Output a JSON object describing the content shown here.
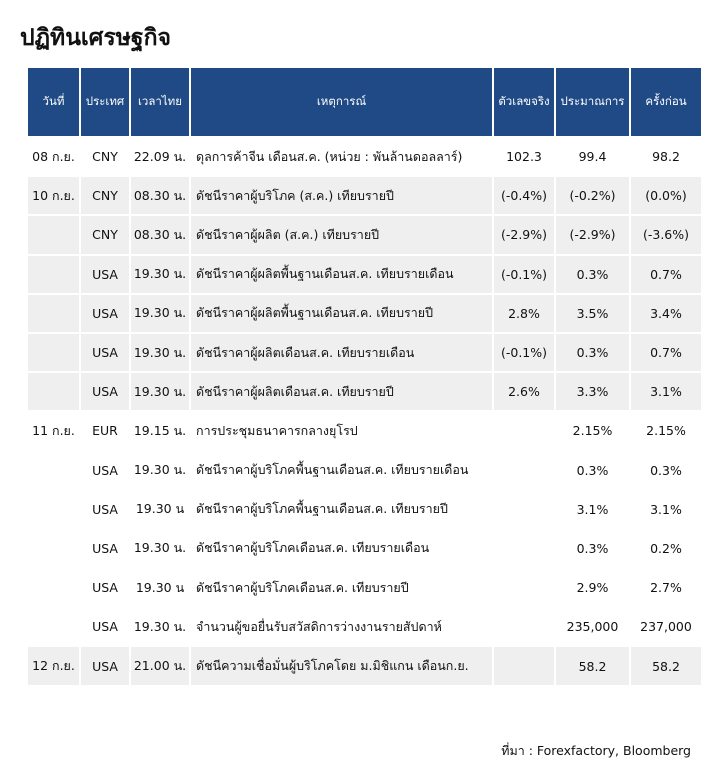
{
  "title": "ปฏิทินเศรษฐกิจ",
  "table": {
    "header": [
      "วันที่",
      "ประเทศ",
      "เวลาไทย",
      "เหตุการณ์",
      "ตัวเลขจริง",
      "ประมาณการ",
      "ครั้งก่อน"
    ],
    "rows": [
      [
        "08 ก.ย.",
        "CNY",
        "22.09 น.",
        "ดุลการค้าจีน เดือนส.ค. (หน่วย : พันล้านดอลลาร์)",
        "102.3",
        "99.4",
        "98.2"
      ],
      [
        "10 ก.ย.",
        "CNY",
        "08.30 น.",
        "ดัชนีราคาผู้บริโภค (ส.ค.) เทียบรายปี",
        "(-0.4%)",
        "(-0.2%)",
        "(0.0%)"
      ],
      [
        null,
        "CNY",
        "08.30 น.",
        "ดัชนีราคาผู้ผลิต (ส.ค.) เทียบรายปี",
        "(-2.9%)",
        "(-2.9%)",
        "(-3.6%)"
      ],
      [
        null,
        "USA",
        "19.30 น.",
        "ดัชนีราคาผู้ผลิตพื้นฐานเดือนส.ค. เทียบรายเดือน",
        "(-0.1%)",
        "0.3%",
        "0.7%"
      ],
      [
        null,
        "USA",
        "19.30 น.",
        "ดัชนีราคาผู้ผลิตพื้นฐานเดือนส.ค. เทียบรายปี",
        "2.8%",
        "3.5%",
        "3.4%"
      ],
      [
        null,
        "USA",
        "19.30 น.",
        "ดัชนีราคาผู้ผลิตเดือนส.ค. เทียบรายเดือน",
        "(-0.1%)",
        "0.3%",
        "0.7%"
      ],
      [
        null,
        "USA",
        "19.30 น.",
        "ดัชนีราคาผู้ผลิตเดือนส.ค. เทียบรายปี",
        "2.6%",
        "3.3%",
        "3.1%"
      ],
      [
        "11 ก.ย.",
        "EUR",
        "19.15 น.",
        "การประชุมธนาคารกลางยุโรป",
        null,
        "2.15%",
        "2.15%"
      ],
      [
        null,
        "USA",
        "19.30 น.",
        "ดัชนีราคาผู้บริโภคพื้นฐานเดือนส.ค. เทียบรายเดือน",
        null,
        "0.3%",
        "0.3%"
      ],
      [
        null,
        "USA",
        "19.30 น",
        "ดัชนีราคาผู้บริโภคพื้นฐานเดือนส.ค. เทียบรายปี",
        null,
        "3.1%",
        "3.1%"
      ],
      [
        null,
        "USA",
        "19.30 น.",
        "ดัชนีราคาผู้บริโภคเดือนส.ค. เทียบรายเดือน",
        null,
        "0.3%",
        "0.2%"
      ],
      [
        null,
        "USA",
        "19.30 น",
        "ดัชนีราคาผู้บริโภคเดือนส.ค. เทียบรายปี",
        null,
        "2.9%",
        "2.7%"
      ],
      [
        null,
        "USA",
        "19.30 น.",
        "จำนวนผู้ขอยื่นรับสวัสดิการว่างงานรายสัปดาห์",
        null,
        "235,000",
        "237,000"
      ],
      [
        "12 ก.ย.",
        "USA",
        "21.00 น.",
        "ดัชนีความเชื่อมั่นผู้บริโภคโดย ม.มิชิแกน เดือนก.ย.",
        null,
        "58.2",
        "58.2"
      ]
    ]
  },
  "source": "ที่มา : Forexfactory, Bloomberg"
}
